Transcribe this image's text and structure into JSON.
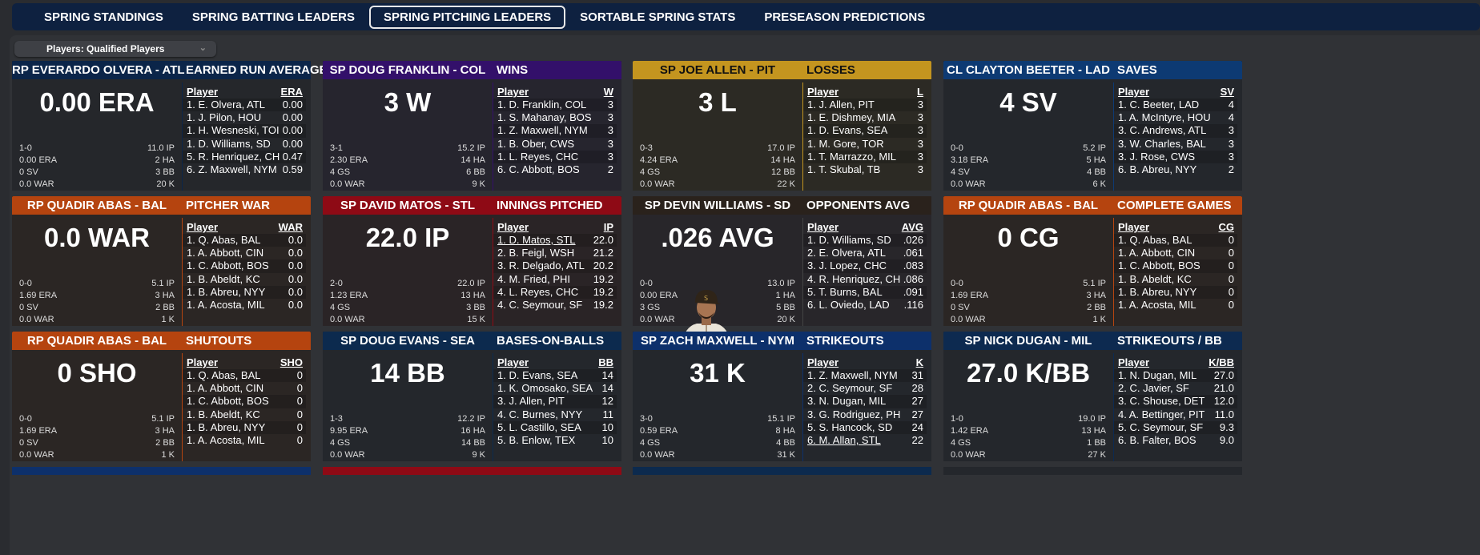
{
  "tabs": [
    "SPRING STANDINGS",
    "SPRING BATTING LEADERS",
    "SPRING PITCHING LEADERS",
    "SORTABLE SPRING STATS",
    "PRESEASON PREDICTIONS"
  ],
  "active_tab": 2,
  "filter": {
    "label": "Players: Qualified Players"
  },
  "cards": [
    {
      "player": "RP EVERARDO OLVERA - ATL",
      "category": "EARNED RUN AVERAGE",
      "big": "0.00 ERA",
      "color": "#0b2549",
      "tint": "#25272b",
      "text": "#fff",
      "stats": [
        [
          "1-0",
          "11.0 IP"
        ],
        [
          "0.00 ERA",
          "2 HA"
        ],
        [
          "0 SV",
          "3 BB"
        ],
        [
          "0.0 WAR",
          "20 K"
        ]
      ],
      "col": "ERA",
      "rows": [
        [
          "1. E. Olvera, ATL",
          "0.00"
        ],
        [
          "1. J. Pilon, HOU",
          "0.00"
        ],
        [
          "1. H. Wesneski, TOI",
          "0.00"
        ],
        [
          "1. D. Williams, SD",
          "0.00"
        ],
        [
          "5. R. Henriquez, CH",
          "0.47"
        ],
        [
          "6. Z. Maxwell, NYM",
          "0.59"
        ]
      ]
    },
    {
      "player": "SP DOUG FRANKLIN - COL",
      "category": "WINS",
      "big": "3 W",
      "color": "#33106a",
      "tint": "#26252e",
      "text": "#fff",
      "stats": [
        [
          "3-1",
          "15.2 IP"
        ],
        [
          "2.30 ERA",
          "14 HA"
        ],
        [
          "4 GS",
          "6 BB"
        ],
        [
          "0.0 WAR",
          "9 K"
        ]
      ],
      "col": "W",
      "rows": [
        [
          "1. D. Franklin, COL",
          "3"
        ],
        [
          "1. S. Mahanay, BOS",
          "3"
        ],
        [
          "1. Z. Maxwell, NYM",
          "3"
        ],
        [
          "1. B. Ober, CWS",
          "3"
        ],
        [
          "1. L. Reyes, CHC",
          "3"
        ],
        [
          "6. C. Abbott, BOS",
          "2"
        ]
      ]
    },
    {
      "player": "SP JOE ALLEN - PIT",
      "category": "LOSSES",
      "big": "3 L",
      "color": "#c4951f",
      "tint": "#2c2a24",
      "text": "#111",
      "stats": [
        [
          "0-3",
          "17.0 IP"
        ],
        [
          "4.24 ERA",
          "14 HA"
        ],
        [
          "4 GS",
          "12 BB"
        ],
        [
          "0.0 WAR",
          "22 K"
        ]
      ],
      "col": "L",
      "rows": [
        [
          "1. J. Allen, PIT",
          "3"
        ],
        [
          "1. E. Dishmey, MIA",
          "3"
        ],
        [
          "1. D. Evans, SEA",
          "3"
        ],
        [
          "1. M. Gore, TOR",
          "3"
        ],
        [
          "1. T. Marrazzo, MIL",
          "3"
        ],
        [
          "1. T. Skubal, TB",
          "3"
        ]
      ]
    },
    {
      "player": "CL CLAYTON BEETER - LAD",
      "category": "SAVES",
      "big": "4 SV",
      "color": "#0d3a73",
      "tint": "#24272c",
      "text": "#fff",
      "stats": [
        [
          "0-0",
          "5.2 IP"
        ],
        [
          "3.18 ERA",
          "5 HA"
        ],
        [
          "4 SV",
          "4 BB"
        ],
        [
          "0.0 WAR",
          "6 K"
        ]
      ],
      "col": "SV",
      "rows": [
        [
          "1. C. Beeter, LAD",
          "4"
        ],
        [
          "1. A. McIntyre, HOU",
          "4"
        ],
        [
          "3. C. Andrews, ATL",
          "3"
        ],
        [
          "3. W. Charles, BAL",
          "3"
        ],
        [
          "3. J. Rose, CWS",
          "3"
        ],
        [
          "6. B. Abreu, NYY",
          "2"
        ]
      ]
    },
    {
      "player": "RP QUADIR ABAS - BAL",
      "category": "PITCHER WAR",
      "big": "0.0 WAR",
      "color": "#b5440f",
      "tint": "#2b2624",
      "text": "#fff",
      "stats": [
        [
          "0-0",
          "5.1 IP"
        ],
        [
          "1.69 ERA",
          "3 HA"
        ],
        [
          "0 SV",
          "2 BB"
        ],
        [
          "0.0 WAR",
          "1 K"
        ]
      ],
      "col": "WAR",
      "rows": [
        [
          "1. Q. Abas, BAL",
          "0.0"
        ],
        [
          "1. A. Abbott, CIN",
          "0.0"
        ],
        [
          "1. C. Abbott, BOS",
          "0.0"
        ],
        [
          "1. B. Abeldt, KC",
          "0.0"
        ],
        [
          "1. B. Abreu, NYY",
          "0.0"
        ],
        [
          "1. A. Acosta, MIL",
          "0.0"
        ]
      ]
    },
    {
      "player": "SP DAVID MATOS - STL",
      "category": "INNINGS PITCHED",
      "big": "22.0 IP",
      "color": "#8e0a15",
      "tint": "#2a2426",
      "text": "#fff",
      "stats": [
        [
          "2-0",
          "22.0 IP"
        ],
        [
          "1.23 ERA",
          "13 HA"
        ],
        [
          "4 GS",
          "3 BB"
        ],
        [
          "0.0 WAR",
          "15 K"
        ]
      ],
      "col": "IP",
      "hl": 0,
      "rows": [
        [
          "1. D. Matos, STL",
          "22.0"
        ],
        [
          "2. B. Feigl, WSH",
          "21.2"
        ],
        [
          "3. R. Delgado, ATL",
          "20.2"
        ],
        [
          "4. M. Fried, PHI",
          "19.2"
        ],
        [
          "4. L. Reyes, CHC",
          "19.2"
        ],
        [
          "4. C. Seymour, SF",
          "19.2"
        ]
      ]
    },
    {
      "player": "SP DEVIN WILLIAMS - SD",
      "category": "OPPONENTS AVG",
      "big": ".026 AVG",
      "color": "#2a221c",
      "tint": "#28262a",
      "text": "#fff",
      "photo": true,
      "stats": [
        [
          "0-0",
          "13.0 IP"
        ],
        [
          "0.00 ERA",
          "1 HA"
        ],
        [
          "3 GS",
          "5 BB"
        ],
        [
          "0.0 WAR",
          "20 K"
        ]
      ],
      "col": "AVG",
      "rows": [
        [
          "1. D. Williams, SD",
          ".026"
        ],
        [
          "2. E. Olvera, ATL",
          ".061"
        ],
        [
          "3. J. Lopez, CHC",
          ".083"
        ],
        [
          "4. R. Henriquez, CH",
          ".086"
        ],
        [
          "5. T. Burns, BAL",
          ".091"
        ],
        [
          "6. L. Oviedo, LAD",
          ".116"
        ]
      ]
    },
    {
      "player": "RP QUADIR ABAS - BAL",
      "category": "COMPLETE GAMES",
      "big": "0 CG",
      "color": "#b5440f",
      "tint": "#2b2624",
      "text": "#fff",
      "stats": [
        [
          "0-0",
          "5.1 IP"
        ],
        [
          "1.69 ERA",
          "3 HA"
        ],
        [
          "0 SV",
          "2 BB"
        ],
        [
          "0.0 WAR",
          "1 K"
        ]
      ],
      "col": "CG",
      "rows": [
        [
          "1. Q. Abas, BAL",
          "0"
        ],
        [
          "1. A. Abbott, CIN",
          "0"
        ],
        [
          "1. C. Abbott, BOS",
          "0"
        ],
        [
          "1. B. Abeldt, KC",
          "0"
        ],
        [
          "1. B. Abreu, NYY",
          "0"
        ],
        [
          "1. A. Acosta, MIL",
          "0"
        ]
      ]
    },
    {
      "player": "RP QUADIR ABAS - BAL",
      "category": "SHUTOUTS",
      "big": "0 SHO",
      "color": "#b5440f",
      "tint": "#2b2624",
      "text": "#fff",
      "stats": [
        [
          "0-0",
          "5.1 IP"
        ],
        [
          "1.69 ERA",
          "3 HA"
        ],
        [
          "0 SV",
          "2 BB"
        ],
        [
          "0.0 WAR",
          "1 K"
        ]
      ],
      "col": "SHO",
      "rows": [
        [
          "1. Q. Abas, BAL",
          "0"
        ],
        [
          "1. A. Abbott, CIN",
          "0"
        ],
        [
          "1. C. Abbott, BOS",
          "0"
        ],
        [
          "1. B. Abeldt, KC",
          "0"
        ],
        [
          "1. B. Abreu, NYY",
          "0"
        ],
        [
          "1. A. Acosta, MIL",
          "0"
        ]
      ]
    },
    {
      "player": "SP DOUG EVANS - SEA",
      "category": "BASES-ON-BALLS",
      "big": "14 BB",
      "color": "#0c2a4e",
      "tint": "#24272c",
      "text": "#fff",
      "stats": [
        [
          "1-3",
          "12.2 IP"
        ],
        [
          "9.95 ERA",
          "16 HA"
        ],
        [
          "4 GS",
          "14 BB"
        ],
        [
          "0.0 WAR",
          "9 K"
        ]
      ],
      "col": "BB",
      "rows": [
        [
          "1. D. Evans, SEA",
          "14"
        ],
        [
          "1. K. Omosako, SEA",
          "14"
        ],
        [
          "3. J. Allen, PIT",
          "12"
        ],
        [
          "4. C. Burnes, NYY",
          "11"
        ],
        [
          "5. L. Castillo, SEA",
          "10"
        ],
        [
          "5. B. Enlow, TEX",
          "10"
        ]
      ]
    },
    {
      "player": "SP ZACH MAXWELL - NYM",
      "category": "STRIKEOUTS",
      "big": "31 K",
      "color": "#0d306b",
      "tint": "#24272c",
      "text": "#fff",
      "stats": [
        [
          "3-0",
          "15.1 IP"
        ],
        [
          "0.59 ERA",
          "8 HA"
        ],
        [
          "4 GS",
          "4 BB"
        ],
        [
          "0.0 WAR",
          "31 K"
        ]
      ],
      "col": "K",
      "hl": 5,
      "rows": [
        [
          "1. Z. Maxwell, NYM",
          "31"
        ],
        [
          "2. C. Seymour, SF",
          "28"
        ],
        [
          "3. N. Dugan, MIL",
          "27"
        ],
        [
          "3. G. Rodriguez, PH",
          "27"
        ],
        [
          "5. S. Hancock, SD",
          "24"
        ],
        [
          "6. M. Allan, STL",
          "22"
        ]
      ]
    },
    {
      "player": "SP NICK DUGAN - MIL",
      "category": "STRIKEOUTS / BB",
      "big": "27.0 K/BB",
      "color": "#0d2a50",
      "tint": "#24272c",
      "text": "#fff",
      "stats": [
        [
          "1-0",
          "19.0 IP"
        ],
        [
          "1.42 ERA",
          "13 HA"
        ],
        [
          "4 GS",
          "1 BB"
        ],
        [
          "0.0 WAR",
          "27 K"
        ]
      ],
      "col": "K/BB",
      "rows": [
        [
          "1. N. Dugan, MIL",
          "27.0"
        ],
        [
          "2. C. Javier, SF",
          "21.0"
        ],
        [
          "3. C. Shouse, DET",
          "12.0"
        ],
        [
          "4. A. Bettinger, PIT",
          "11.0"
        ],
        [
          "5. C. Seymour, SF",
          "9.3"
        ],
        [
          "6. B. Falter, BOS",
          "9.0"
        ]
      ]
    }
  ],
  "next_row_colors": [
    "#0d306b",
    "#8e0a15",
    "#0c2a4e",
    "#24272c"
  ]
}
